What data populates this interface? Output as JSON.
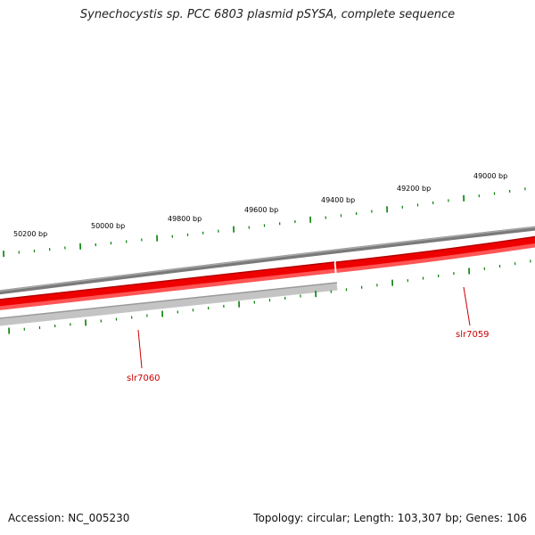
{
  "title": "Synechocystis sp. PCC 6803 plasmid pSYSA, complete sequence",
  "map": {
    "tick_labels": [
      "49000 bp",
      "49200 bp",
      "49400 bp",
      "49600 bp",
      "49800 bp",
      "50000 bp",
      "50200 bp"
    ],
    "genes": [
      {
        "name": "slr7059",
        "strand": "forward",
        "color": "#ff0000"
      },
      {
        "name": "slr7060",
        "strand": "forward",
        "color": "#ff0000"
      }
    ],
    "colors": {
      "forward": "#ff0000",
      "reverse": "#bbbbbb",
      "backbone": "#808080",
      "ticks": "#008000"
    }
  },
  "footer": {
    "accession": "Accession: NC_005230",
    "stats": "Topology: circular; Length: 103,307 bp; Genes: 106"
  }
}
